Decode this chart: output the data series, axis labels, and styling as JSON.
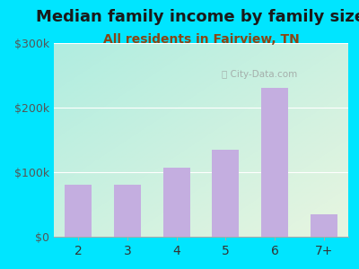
{
  "title": "Median family income by family size",
  "subtitle": "All residents in Fairview, TN",
  "categories": [
    "2",
    "3",
    "4",
    "5",
    "6",
    "7+"
  ],
  "values": [
    80000,
    80000,
    107000,
    135000,
    230000,
    35000
  ],
  "bar_color": "#c4aee0",
  "title_color": "#1a1a1a",
  "subtitle_color": "#8b4513",
  "outer_bg_color": "#00e5ff",
  "inner_bg_topleft": "#b0ede0",
  "inner_bg_bottomright": "#e8f5e0",
  "ylim": [
    0,
    300000
  ],
  "yticks": [
    0,
    100000,
    200000,
    300000
  ],
  "ytick_labels": [
    "$0",
    "$100k",
    "$200k",
    "$300k"
  ],
  "watermark": "ⓘ City-Data.com",
  "title_fontsize": 13,
  "subtitle_fontsize": 10
}
